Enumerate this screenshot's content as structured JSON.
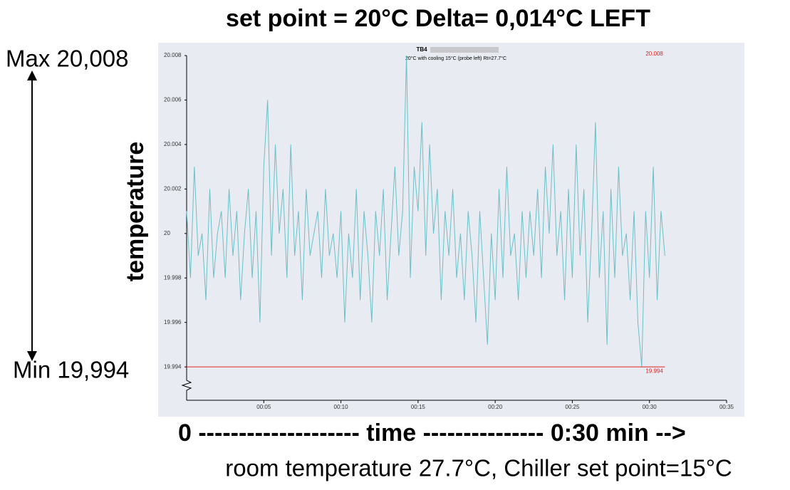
{
  "chart_data": {
    "type": "line",
    "title": "set point = 20°C   Delta= 0,014°C   LEFT",
    "subtitle": [
      "TB4",
      "20°C with cooling 15°C (probe left) Rt=27.7°C"
    ],
    "y_label": "temperature",
    "x_label": "0 -------------------- time --------------- 0:30 min -->",
    "caption": "room temperature 27.7°C, Chiller set point=15°C",
    "max_label": "Max 20,008",
    "min_label": "Min 19,994",
    "max_value": 20.008,
    "min_value": 19.994,
    "min_line_color": "#e02020",
    "color": "#6bbfc6",
    "xlim": [
      0,
      35
    ],
    "ylim": [
      19.9925,
      20.008
    ],
    "xticks": [
      {
        "value": 5,
        "label": "00:05"
      },
      {
        "value": 10,
        "label": "00:10"
      },
      {
        "value": 15,
        "label": "00:15"
      },
      {
        "value": 20,
        "label": "00:20"
      },
      {
        "value": 25,
        "label": "00:25"
      },
      {
        "value": 30,
        "label": "00:30"
      },
      {
        "value": 35,
        "label": "00:35"
      }
    ],
    "yticks": [
      20.008,
      20.006,
      20.004,
      20.002,
      20,
      19.998,
      19.996,
      19.994
    ],
    "x": [
      0,
      0.25,
      0.5,
      0.75,
      1,
      1.25,
      1.5,
      1.75,
      2,
      2.25,
      2.5,
      2.75,
      3,
      3.25,
      3.5,
      3.75,
      4,
      4.25,
      4.5,
      4.75,
      5,
      5.25,
      5.5,
      5.75,
      6,
      6.25,
      6.5,
      6.75,
      7,
      7.25,
      7.5,
      7.75,
      8,
      8.25,
      8.5,
      8.75,
      9,
      9.25,
      9.5,
      9.75,
      10,
      10.25,
      10.5,
      10.75,
      11,
      11.25,
      11.5,
      11.75,
      12,
      12.25,
      12.5,
      12.75,
      13,
      13.25,
      13.5,
      13.75,
      14,
      14.25,
      14.5,
      14.75,
      15,
      15.25,
      15.5,
      15.75,
      16,
      16.25,
      16.5,
      16.75,
      17,
      17.25,
      17.5,
      17.75,
      18,
      18.25,
      18.5,
      18.75,
      19,
      19.25,
      19.5,
      19.75,
      20,
      20.25,
      20.5,
      20.75,
      21,
      21.25,
      21.5,
      21.75,
      22,
      22.25,
      22.5,
      22.75,
      23,
      23.25,
      23.5,
      23.75,
      24,
      24.25,
      24.5,
      24.75,
      25,
      25.25,
      25.5,
      25.75,
      26,
      26.25,
      26.5,
      26.75,
      27,
      27.25,
      27.5,
      27.75,
      28,
      28.25,
      28.5,
      28.75,
      29,
      29.25,
      29.5,
      29.75,
      30,
      30.25,
      30.5,
      30.75,
      31
    ],
    "values": [
      20.001,
      19.998,
      20.003,
      19.999,
      20,
      19.997,
      20.002,
      19.998,
      20,
      20.001,
      19.998,
      20.002,
      19.999,
      20.001,
      19.997,
      20,
      20.002,
      19.998,
      20.001,
      19.996,
      20.003,
      20.006,
      19.999,
      20.004,
      20,
      20.002,
      19.998,
      20.004,
      19.999,
      20.001,
      19.997,
      20.002,
      19.999,
      20,
      20.001,
      19.998,
      20.002,
      19.999,
      20,
      19.998,
      20.001,
      19.996,
      20,
      19.998,
      20.002,
      19.997,
      20.001,
      19.999,
      19.996,
      20.001,
      19.999,
      20.002,
      19.997,
      20,
      20.003,
      19.999,
      20.001,
      20.008,
      19.998,
      20.003,
      20.001,
      20.005,
      19.999,
      20.004,
      20,
      20.002,
      19.997,
      20.001,
      19.999,
      20.002,
      19.998,
      20,
      19.997,
      20.001,
      19.999,
      19.996,
      20.001,
      19.998,
      19.995,
      20,
      19.997,
      20.002,
      19.998,
      20.003,
      19.999,
      20,
      19.997,
      20.001,
      19.998,
      20.001,
      19.999,
      20.002,
      19.998,
      20.003,
      20,
      20.004,
      19.999,
      20.001,
      19.997,
      20.002,
      19.998,
      20.004,
      19.999,
      20.002,
      19.996,
      20,
      20.005,
      19.998,
      20.001,
      19.995,
      20.002,
      19.998,
      20.003,
      19.999,
      20,
      19.997,
      20.001,
      19.996,
      19.994,
      20.001,
      19.998,
      20.003,
      19.997,
      20.001,
      19.999
    ]
  }
}
